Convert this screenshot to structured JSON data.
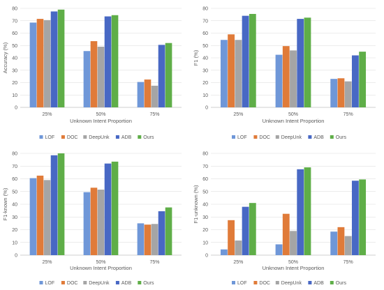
{
  "colors": {
    "LOF": "#6f97d8",
    "DOC": "#e07b39",
    "DeepUnk": "#a5a5a5",
    "ADB": "#4868c4",
    "Ours": "#5fae48"
  },
  "chart_data": [
    {
      "type": "bar",
      "categories": [
        "25%",
        "50%",
        "75%"
      ],
      "xlabel": "Unknown Intent Proportion",
      "ylabel": "Accuracy (%)",
      "ylim": [
        0,
        80
      ],
      "yticks": [
        0,
        10,
        20,
        30,
        40,
        50,
        60,
        70,
        80
      ],
      "grid": true,
      "legend": "bottom",
      "series": [
        {
          "name": "LOF",
          "values": [
            68.5,
            45.5,
            20.5
          ]
        },
        {
          "name": "DOC",
          "values": [
            71.5,
            53.5,
            22.5
          ]
        },
        {
          "name": "DeepUnk",
          "values": [
            70.5,
            49.0,
            17.5
          ]
        },
        {
          "name": "ADB",
          "values": [
            77.5,
            73.5,
            50.5
          ]
        },
        {
          "name": "Ours",
          "values": [
            79.0,
            74.5,
            52.0
          ]
        }
      ]
    },
    {
      "type": "bar",
      "categories": [
        "25%",
        "50%",
        "75%"
      ],
      "xlabel": "Unknown Intent Proportion",
      "ylabel": "F1 (%)",
      "ylim": [
        0,
        80
      ],
      "yticks": [
        0,
        10,
        20,
        30,
        40,
        50,
        60,
        70,
        80
      ],
      "grid": true,
      "legend": "bottom",
      "series": [
        {
          "name": "LOF",
          "values": [
            54.5,
            42.5,
            23.0
          ]
        },
        {
          "name": "DOC",
          "values": [
            59.0,
            49.5,
            23.5
          ]
        },
        {
          "name": "DeepUnk",
          "values": [
            54.5,
            46.0,
            21.0
          ]
        },
        {
          "name": "ADB",
          "values": [
            74.0,
            71.5,
            42.0
          ]
        },
        {
          "name": "Ours",
          "values": [
            75.5,
            72.5,
            45.0
          ]
        }
      ]
    },
    {
      "type": "bar",
      "categories": [
        "25%",
        "50%",
        "75%"
      ],
      "xlabel": "Unknown Intent Proportion",
      "ylabel": "F1-known (%)",
      "ylim": [
        0,
        80
      ],
      "yticks": [
        0,
        10,
        20,
        30,
        40,
        50,
        60,
        70,
        80
      ],
      "grid": true,
      "legend": "bottom",
      "series": [
        {
          "name": "LOF",
          "values": [
            60.5,
            49.5,
            25.0
          ]
        },
        {
          "name": "DOC",
          "values": [
            62.5,
            53.0,
            24.0
          ]
        },
        {
          "name": "DeepUnk",
          "values": [
            59.0,
            51.5,
            24.5
          ]
        },
        {
          "name": "ADB",
          "values": [
            78.5,
            72.0,
            34.5
          ]
        },
        {
          "name": "Ours",
          "values": [
            80.0,
            73.5,
            37.5
          ]
        }
      ]
    },
    {
      "type": "bar",
      "categories": [
        "25%",
        "50%",
        "75%"
      ],
      "xlabel": "Unknown Intent Proportion",
      "ylabel": "F1-unknown (%)",
      "ylim": [
        0,
        80
      ],
      "yticks": [
        0,
        10,
        20,
        30,
        40,
        50,
        60,
        70,
        80
      ],
      "grid": true,
      "legend": "bottom",
      "series": [
        {
          "name": "LOF",
          "values": [
            4.5,
            8.5,
            18.5
          ]
        },
        {
          "name": "DOC",
          "values": [
            27.5,
            32.5,
            22.0
          ]
        },
        {
          "name": "DeepUnk",
          "values": [
            11.5,
            19.0,
            15.0
          ]
        },
        {
          "name": "ADB",
          "values": [
            38.0,
            67.5,
            58.5
          ]
        },
        {
          "name": "Ours",
          "values": [
            41.0,
            69.0,
            59.5
          ]
        }
      ]
    }
  ]
}
